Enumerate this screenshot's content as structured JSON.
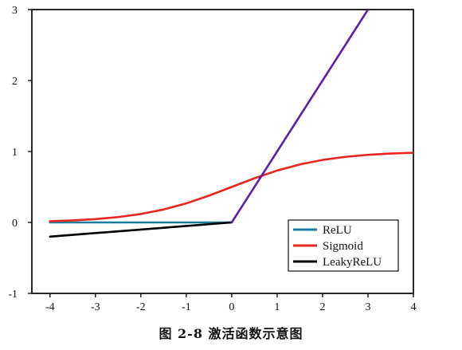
{
  "chart_data": {
    "type": "line",
    "title": "",
    "xlabel": "",
    "ylabel": "",
    "xlim": [
      -4.4,
      4
    ],
    "ylim": [
      -1,
      3
    ],
    "xticks": [
      -4,
      -3,
      -2,
      -1,
      0,
      1,
      2,
      3,
      4
    ],
    "yticks": [
      -1,
      0,
      1,
      2,
      3
    ],
    "xtick_labels": [
      "-4",
      "-3",
      "-2",
      "-1",
      "0",
      "1",
      "2",
      "3",
      "4"
    ],
    "ytick_labels": [
      "-1",
      "0",
      "1",
      "2",
      "3"
    ],
    "grid": false,
    "legend_position": "bottom-right",
    "series": [
      {
        "name": "ReLU",
        "color": "#1a7f9a",
        "x": [
          -4,
          -3,
          -2,
          -1,
          0
        ],
        "y": [
          0,
          0,
          0,
          0,
          0
        ]
      },
      {
        "name": "Sigmoid",
        "color": "#e8251f",
        "x": [
          -4,
          -3.5,
          -3,
          -2.5,
          -2,
          -1.5,
          -1,
          -0.5,
          0,
          0.5,
          1,
          1.5,
          2,
          2.5,
          3,
          3.5,
          4
        ],
        "y": [
          0.018,
          0.029,
          0.047,
          0.076,
          0.119,
          0.182,
          0.269,
          0.378,
          0.5,
          0.622,
          0.731,
          0.818,
          0.881,
          0.924,
          0.953,
          0.971,
          0.982
        ]
      },
      {
        "name": "LeakyReLU",
        "color": "#000000",
        "x": [
          -4,
          -3,
          -2,
          -1,
          0
        ],
        "y": [
          -0.2,
          -0.15,
          -0.1,
          -0.05,
          0
        ]
      },
      {
        "name": "",
        "color": "#5a20a8",
        "x": [
          0,
          3
        ],
        "y": [
          0,
          3
        ]
      }
    ],
    "legend": [
      "ReLU",
      "Sigmoid",
      "LeakyReLU"
    ]
  },
  "caption": "图 2-8  激活函数示意图"
}
